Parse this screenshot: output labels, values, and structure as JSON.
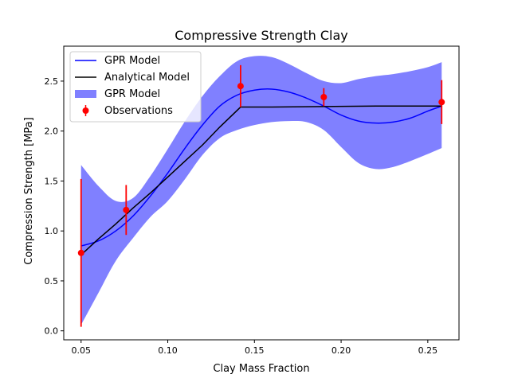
{
  "chart_data": {
    "type": "line",
    "title": "Compressive Strength Clay",
    "xlabel": "Clay Mass Fraction",
    "ylabel": "Compression Strength [MPa]",
    "xlim": [
      0.04,
      0.268
    ],
    "ylim": [
      -0.09,
      2.85
    ],
    "xticks": [
      0.05,
      0.1,
      0.15,
      0.2,
      0.25
    ],
    "xtick_labels": [
      "0.05",
      "0.10",
      "0.15",
      "0.20",
      "0.25"
    ],
    "yticks": [
      0.0,
      0.5,
      1.0,
      1.5,
      2.0,
      2.5
    ],
    "ytick_labels": [
      "0.0",
      "0.5",
      "1.0",
      "1.5",
      "2.0",
      "2.5"
    ],
    "grid": false,
    "legend_position": "top-left",
    "legend": [
      {
        "label": "GPR Model",
        "kind": "line",
        "color": "#0000ff"
      },
      {
        "label": "Analytical Model",
        "kind": "line",
        "color": "#000000"
      },
      {
        "label": "GPR Model",
        "kind": "band",
        "color": "#8080ff"
      },
      {
        "label": "Observations",
        "kind": "errorbar",
        "color": "#ff0000"
      }
    ],
    "series": [
      {
        "name": "GPR Model",
        "kind": "line",
        "color": "#0000ff",
        "x": [
          0.05,
          0.06,
          0.07,
          0.08,
          0.09,
          0.1,
          0.11,
          0.12,
          0.13,
          0.14,
          0.15,
          0.16,
          0.17,
          0.18,
          0.19,
          0.2,
          0.21,
          0.22,
          0.23,
          0.24,
          0.25,
          0.258
        ],
        "y": [
          0.85,
          0.9,
          1.0,
          1.15,
          1.35,
          1.58,
          1.83,
          2.06,
          2.25,
          2.36,
          2.41,
          2.42,
          2.39,
          2.33,
          2.25,
          2.16,
          2.1,
          2.08,
          2.09,
          2.13,
          2.2,
          2.25
        ]
      },
      {
        "name": "GPR Model",
        "kind": "band",
        "color": "#8080ff",
        "x": [
          0.05,
          0.06,
          0.07,
          0.08,
          0.09,
          0.1,
          0.11,
          0.12,
          0.13,
          0.14,
          0.15,
          0.16,
          0.17,
          0.18,
          0.19,
          0.2,
          0.21,
          0.22,
          0.23,
          0.24,
          0.25,
          0.258
        ],
        "upper": [
          1.66,
          1.45,
          1.3,
          1.33,
          1.55,
          1.82,
          2.1,
          2.35,
          2.55,
          2.7,
          2.75,
          2.74,
          2.67,
          2.58,
          2.5,
          2.48,
          2.52,
          2.55,
          2.57,
          2.6,
          2.64,
          2.69
        ],
        "lower": [
          0.06,
          0.38,
          0.7,
          0.93,
          1.14,
          1.3,
          1.52,
          1.76,
          1.93,
          2.01,
          2.06,
          2.09,
          2.1,
          2.09,
          2.01,
          1.84,
          1.68,
          1.62,
          1.64,
          1.7,
          1.77,
          1.83
        ]
      },
      {
        "name": "Analytical Model",
        "kind": "line",
        "color": "#000000",
        "x": [
          0.05,
          0.06,
          0.07,
          0.08,
          0.09,
          0.1,
          0.11,
          0.12,
          0.13,
          0.142,
          0.16,
          0.19,
          0.22,
          0.258
        ],
        "y": [
          0.76,
          0.92,
          1.07,
          1.23,
          1.38,
          1.54,
          1.7,
          1.86,
          2.04,
          2.24,
          2.24,
          2.245,
          2.25,
          2.25
        ]
      },
      {
        "name": "Observations",
        "kind": "errorbar",
        "color": "#ff0000",
        "x": [
          0.05,
          0.076,
          0.142,
          0.19,
          0.258
        ],
        "y": [
          0.78,
          1.21,
          2.45,
          2.34,
          2.29
        ],
        "yerr": [
          0.74,
          0.25,
          0.21,
          0.09,
          0.22
        ]
      }
    ]
  }
}
